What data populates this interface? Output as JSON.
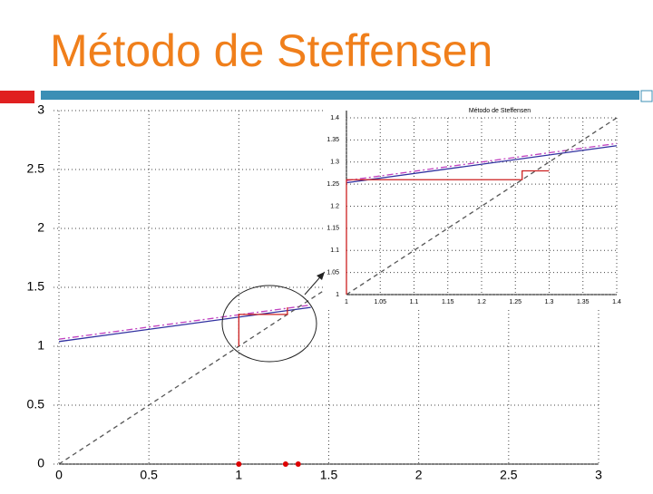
{
  "slide_title": "Método de Steffensen",
  "chart_data": [
    {
      "type": "line",
      "xlim": [
        0,
        3
      ],
      "ylim": [
        0,
        3
      ],
      "xticks": [
        0,
        0.5,
        1,
        1.5,
        2,
        2.5,
        3
      ],
      "yticks": [
        0,
        0.5,
        1,
        1.5,
        2,
        2.5,
        3
      ],
      "grid": true,
      "series": [
        {
          "color": "#c040c0",
          "style": "dashdot",
          "x": [
            0,
            1.4
          ],
          "values": [
            1.06,
            1.35
          ]
        },
        {
          "color": "#3030a0",
          "style": "solid",
          "x": [
            0,
            1.4
          ],
          "values": [
            1.04,
            1.33
          ]
        },
        {
          "color": "#555555",
          "style": "dashed",
          "x": [
            0,
            1.5
          ],
          "values": [
            0,
            1.5
          ]
        },
        {
          "color": "#cc2020",
          "style": "solid",
          "x": [
            1,
            1,
            1.27,
            1.27
          ],
          "values": [
            1,
            1.27,
            1.27,
            1.33
          ]
        },
        {
          "color": "#dd0000",
          "type": "scatter",
          "x": [
            1,
            1.26,
            1.33
          ],
          "values": [
            0,
            0,
            0
          ]
        }
      ]
    },
    {
      "type": "line",
      "title": "Método de Steffensen",
      "xlim": [
        1,
        1.4
      ],
      "ylim": [
        1,
        1.4
      ],
      "xticks": [
        1,
        1.05,
        1.1,
        1.15,
        1.2,
        1.25,
        1.3,
        1.35,
        1.4
      ],
      "yticks": [
        1,
        1.05,
        1.1,
        1.15,
        1.2,
        1.25,
        1.3,
        1.35,
        1.4
      ],
      "grid": true,
      "series": [
        {
          "color": "#c040c0",
          "style": "dashdot",
          "x": [
            1,
            1.4
          ],
          "values": [
            1.258,
            1.342
          ]
        },
        {
          "color": "#3030a0",
          "style": "solid",
          "x": [
            1,
            1.4
          ],
          "values": [
            1.253,
            1.337
          ]
        },
        {
          "color": "#555555",
          "style": "dashed",
          "x": [
            1,
            1.4
          ],
          "values": [
            1,
            1.4
          ]
        },
        {
          "color": "#cc2020",
          "style": "solid",
          "x": [
            1,
            1,
            1.26,
            1.26,
            1.3
          ],
          "values": [
            1,
            1.26,
            1.26,
            1.28,
            1.28
          ]
        }
      ]
    }
  ]
}
